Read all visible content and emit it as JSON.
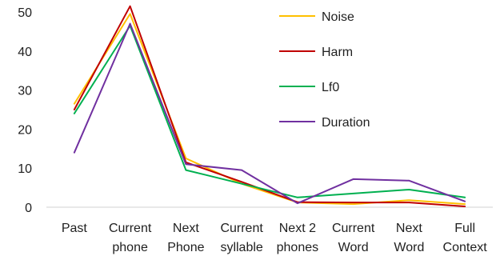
{
  "chart_data": {
    "type": "line",
    "categories": [
      [
        "Past",
        ""
      ],
      [
        "Current",
        "phone"
      ],
      [
        "Next",
        "Phone"
      ],
      [
        "Current",
        "syllable"
      ],
      [
        "Next 2",
        "phones"
      ],
      [
        "Current",
        "Word"
      ],
      [
        "Next",
        "Word"
      ],
      [
        "Full",
        "Context"
      ]
    ],
    "yticks": [
      "0",
      "10",
      "20",
      "30",
      "40",
      "50"
    ],
    "ylim": [
      0,
      50
    ],
    "grid": false,
    "legend_position": "top-right-inside",
    "series": [
      {
        "name": "Noise",
        "color": "#FFC000",
        "values": [
          26.5,
          49.5,
          12.5,
          6.0,
          1.2,
          0.8,
          1.8,
          0.8
        ]
      },
      {
        "name": "Harm",
        "color": "#C00000",
        "values": [
          25.0,
          51.5,
          11.5,
          6.5,
          1.3,
          1.2,
          1.2,
          0.2
        ]
      },
      {
        "name": "Lf0",
        "color": "#00B050",
        "values": [
          24.0,
          46.5,
          9.5,
          6.0,
          2.5,
          3.5,
          4.5,
          2.5
        ]
      },
      {
        "name": "Duration",
        "color": "#7030A0",
        "values": [
          14.0,
          47.0,
          11.0,
          9.5,
          1.0,
          7.2,
          6.8,
          1.5
        ]
      }
    ]
  }
}
